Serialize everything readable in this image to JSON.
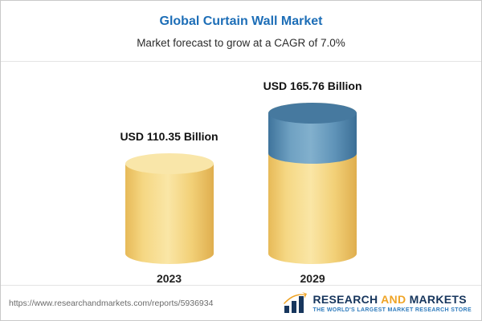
{
  "header": {
    "title": "Global Curtain Wall Market",
    "subtitle": "Market forecast to grow at a CAGR of 7.0%"
  },
  "chart_data": {
    "type": "bar",
    "title": "Global Curtain Wall Market",
    "subtitle": "Market forecast to grow at a CAGR of 7.0%",
    "categories": [
      "2023",
      "2029"
    ],
    "values": [
      110.35,
      165.76
    ],
    "value_labels": [
      "USD 110.35 Billion",
      "USD 165.76 Billion"
    ],
    "unit": "USD Billion",
    "cagr": "7.0%",
    "legend_position": "none",
    "grid": false,
    "colors": {
      "base_segment": "#f2d077",
      "growth_segment": "#5f93b8",
      "title": "#1d6eb7"
    }
  },
  "footer": {
    "url": "https://www.researchandmarkets.com/reports/5936934",
    "logo": {
      "word1": "RESEARCH",
      "word2": "AND",
      "word3": "MARKETS",
      "tagline": "THE WORLD'S LARGEST MARKET RESEARCH STORE"
    }
  }
}
